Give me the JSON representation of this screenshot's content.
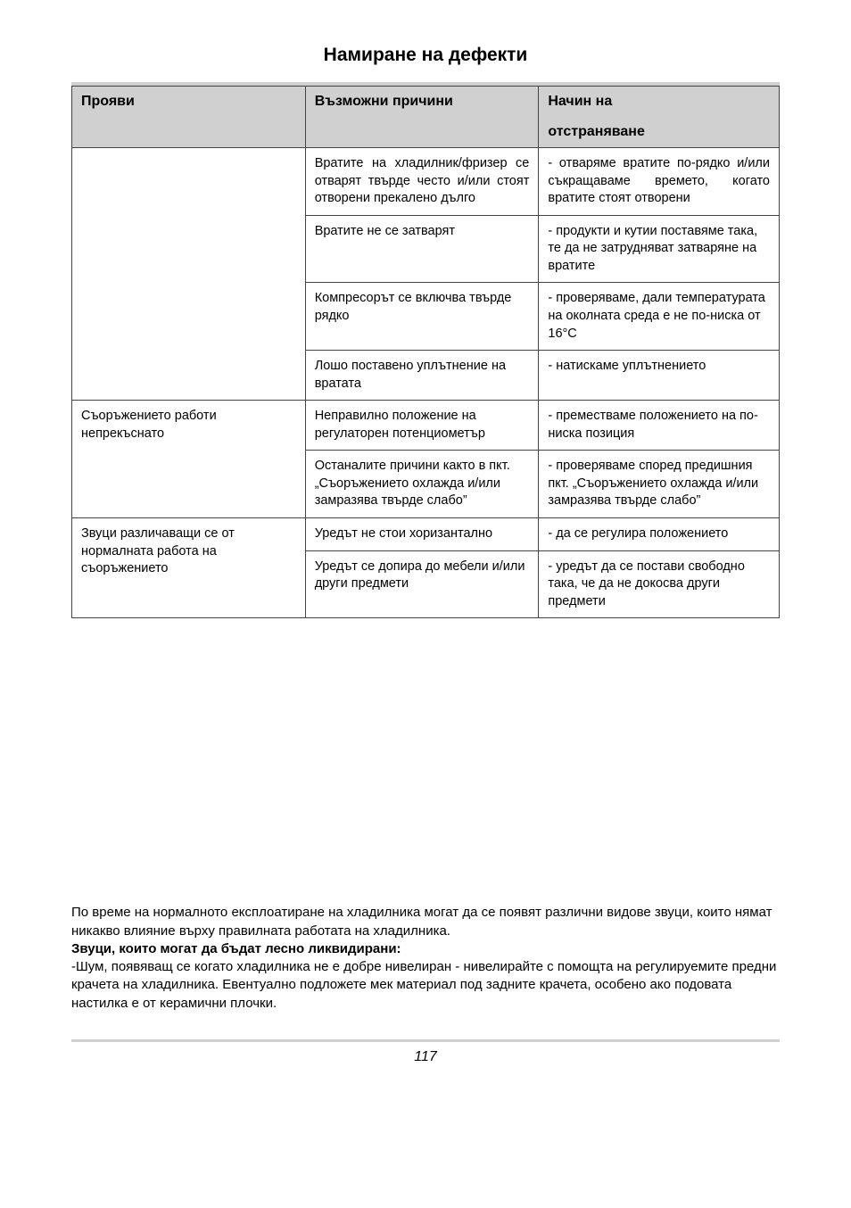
{
  "title": "Намиране на дефекти",
  "table": {
    "headers": {
      "symptoms": "Прояви",
      "causes": "Възможни причини",
      "solution_line1": "Начин на",
      "solution_line2": "отстраняване"
    },
    "group1": {
      "causes": [
        "Вратите на хладилник/фризер се отварят твърде често и/или стоят отворени прекалено дълго",
        "Вратите не се затварят",
        "Компресорът се включва твърде рядко",
        "Лошо поставено уплътнение на вратата"
      ],
      "solutions": [
        "- отваряме вратите по-рядко и/или съкращаваме времето, когато вратите стоят отворени",
        "- продукти и кутии поставяме така, те да не затрудняват затваряне на вратите",
        "- проверяваме, дали температурата на околната среда е не по-ниска от 16°C",
        "- натискаме уплътнението"
      ]
    },
    "group2": {
      "symptom": "Съоръжението работи непрекъснато",
      "causes": [
        "Неправилно положение на регулаторен потенциометър",
        "Останалите причини както в пкт. „Съоръжението охлажда и/или замразява твърде слабо”"
      ],
      "solutions": [
        "- преместваме положението на по-ниска позиция",
        "- проверяваме според предишния пкт. „Съоръжението охлажда и/или замразява твърде слабо”"
      ]
    },
    "group3": {
      "symptom": "Звуци различаващи се от нормалната работа на съоръжението",
      "causes": [
        "Уредът не стои хоризантално",
        "Уредът се допира до мебели и/или други предмети"
      ],
      "solutions": [
        "- да се регулира положението",
        "- уредът да се постави свободно така, че да не докосва други предмети"
      ]
    }
  },
  "footer": {
    "p1": "По време на нормалното експлоатиране на хладилника могат да се появят различни видове звуци, които нямат никакво влияние върху правилната работата на хладилника.",
    "bold": "Звуци, които могат да бъдат лесно ликвидирани:",
    "p2": "-Шум, появяващ се когато хладилника не е добре нивелиран -  нивелирайте с помощта на регулируемите предни крачета на хладилника. Евентуално подложете мек материал под задните крачета, особено ако подовата настилка е от керамични плочки."
  },
  "pageNumber": "117"
}
